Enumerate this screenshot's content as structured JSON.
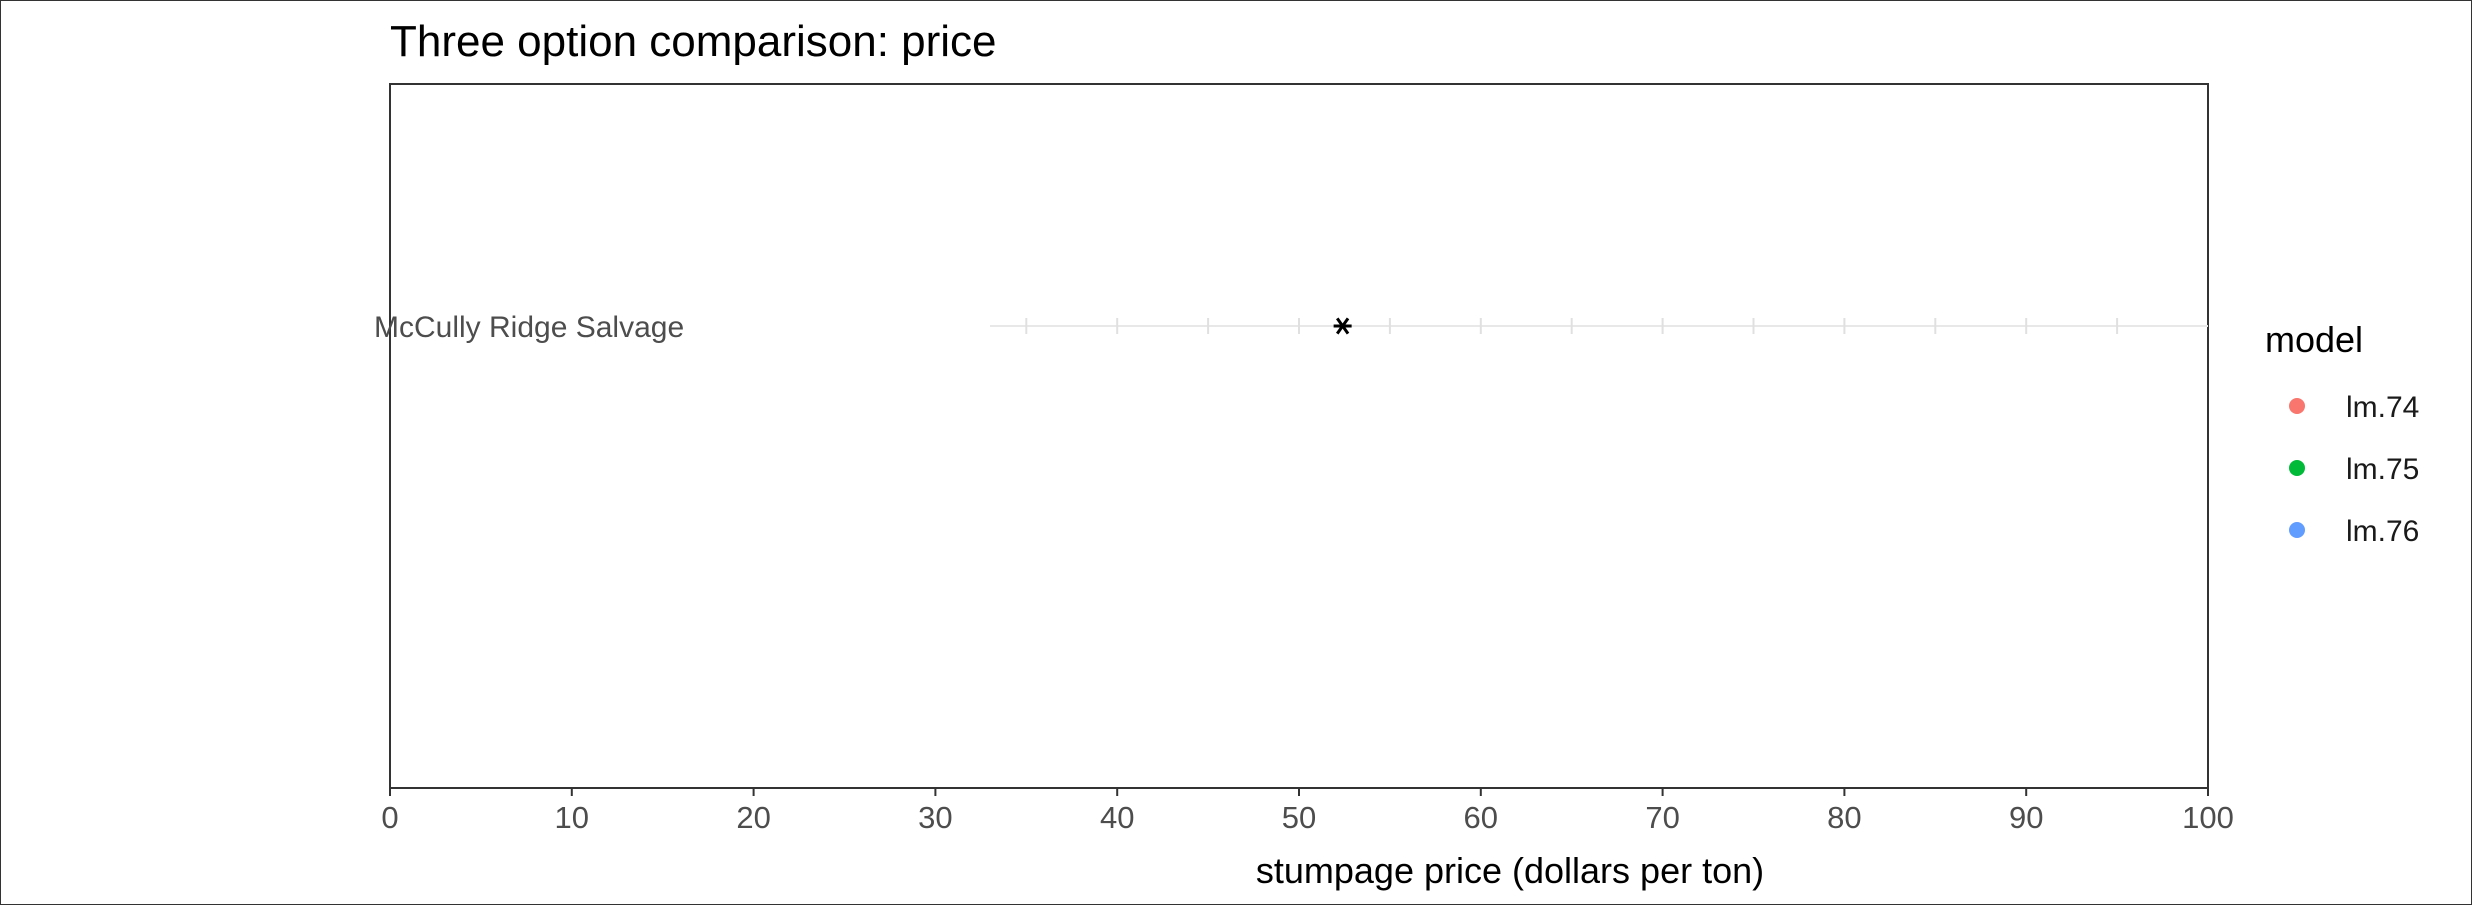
{
  "chart_data": {
    "type": "scatter",
    "title": "Three option comparison: price",
    "xlabel": "stumpage price (dollars per ton)",
    "ylabel": "",
    "xlim": [
      0,
      100
    ],
    "x_ticks": [
      0,
      10,
      20,
      30,
      40,
      50,
      60,
      70,
      80,
      90,
      100
    ],
    "grid": "none",
    "legend": {
      "title": "model",
      "placement": "right",
      "entries": [
        {
          "name": "lm.74",
          "color": "#F8766D"
        },
        {
          "name": "lm.75",
          "color": "#00BA38"
        },
        {
          "name": "lm.76",
          "color": "#619CFF"
        }
      ]
    },
    "rows": [
      {
        "label": "McCully Ridge Salvage",
        "x": 52.4,
        "marker": "asterisk",
        "color": "#000000"
      }
    ]
  }
}
